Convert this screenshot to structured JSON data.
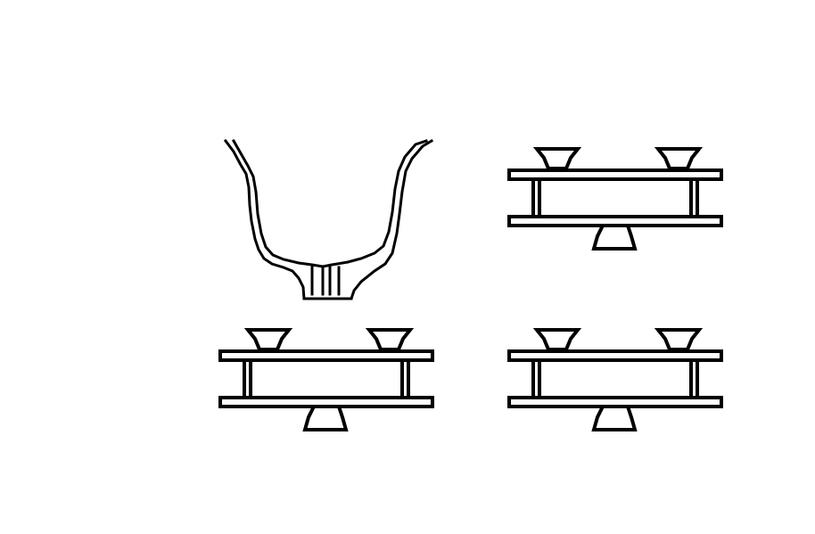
{
  "drawing": {
    "ink_color": "#000000",
    "background_color": "#ffffff",
    "figures": [
      {
        "kind": "curved-horn-bracket"
      },
      {
        "kind": "beam-section-with-mounts"
      },
      {
        "kind": "beam-section-with-mounts"
      },
      {
        "kind": "beam-section-with-mounts"
      }
    ]
  }
}
